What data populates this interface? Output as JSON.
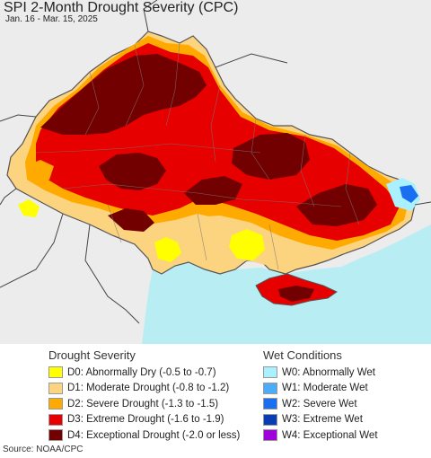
{
  "header": {
    "title": "SPI 2-Month Drought Severity (CPC)",
    "subtitle": "Jan. 16 - Mar. 15, 2025"
  },
  "map": {
    "colors": {
      "land": "#ececec",
      "sea": "#b8eef3",
      "border": "#555555",
      "oblast": "#888888"
    }
  },
  "legend": {
    "drought": {
      "title": "Drought Severity",
      "items": [
        {
          "label": "D0: Abnormally Dry (-0.5 to -0.7)",
          "color": "#ffff00"
        },
        {
          "label": "D1: Moderate Drought (-0.8 to -1.2)",
          "color": "#fcd37f"
        },
        {
          "label": "D2: Severe Drought (-1.3 to -1.5)",
          "color": "#ffaa00"
        },
        {
          "label": "D3: Extreme Drought (-1.6 to -1.9)",
          "color": "#e60000"
        },
        {
          "label": "D4: Exceptional Drought (-2.0 or less)",
          "color": "#730000"
        }
      ]
    },
    "wet": {
      "title": "Wet Conditions",
      "items": [
        {
          "label": "W0: Abnormally Wet",
          "color": "#aaf0ff"
        },
        {
          "label": "W1: Moderate Wet",
          "color": "#4dacf7"
        },
        {
          "label": "W2: Severe Wet",
          "color": "#1a6ef0"
        },
        {
          "label": "W3: Extreme Wet",
          "color": "#0a3cb4"
        },
        {
          "label": "W4: Exceptional Wet",
          "color": "#a000dc"
        }
      ]
    }
  },
  "source": "Source: NOAA/CPC"
}
